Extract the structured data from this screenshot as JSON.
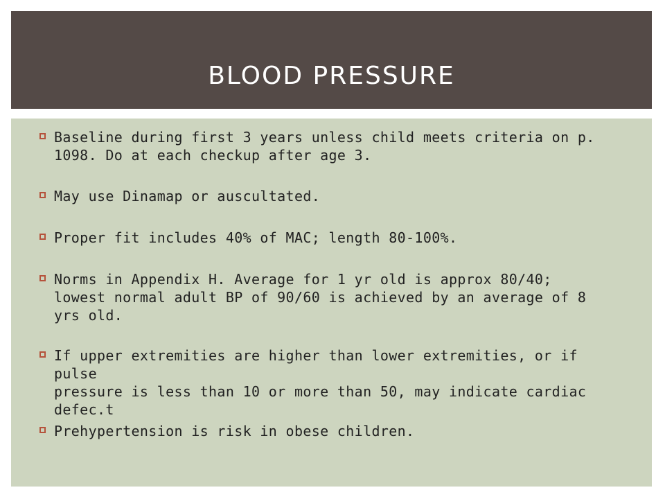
{
  "slide": {
    "title": "BLOOD PRESSURE",
    "bullets": [
      {
        "text": "Baseline during first 3 years unless child meets criteria on p.\n1098. Do at each checkup after age 3."
      },
      {
        "text": "May use Dinamap or auscultated."
      },
      {
        "text": "Proper fit includes 40% of MAC; length 80-100%."
      },
      {
        "text": "Norms in Appendix H. Average for 1 yr old is approx 80/40;\nlowest normal adult BP of 90/60 is achieved by an average of 8\nyrs old."
      },
      {
        "text": "If upper extremities are higher than lower extremities, or if pulse\npressure is less than 10 or more than 50, may indicate cardiac\ndefec.t"
      },
      {
        "text": "Prehypertension is risk in obese children."
      }
    ]
  },
  "colors": {
    "header_bg": "#544a47",
    "body_bg": "#cdd5bf",
    "bullet_accent": "#b5523b",
    "text": "#222222"
  }
}
